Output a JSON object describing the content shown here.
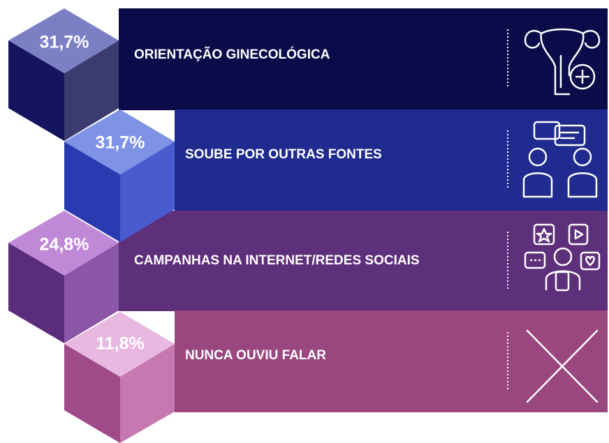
{
  "items": [
    {
      "value": "31,7%",
      "label": "ORIENTAÇÃO GINECOLÓGICA"
    },
    {
      "value": "31,7%",
      "label": "SOUBE POR OUTRAS FONTES"
    },
    {
      "value": "24,8%",
      "label": "CAMPANHAS NA INTERNET/REDES SOCIAIS"
    },
    {
      "value": "11,8%",
      "label": "NUNCA OUVIU FALAR"
    }
  ]
}
